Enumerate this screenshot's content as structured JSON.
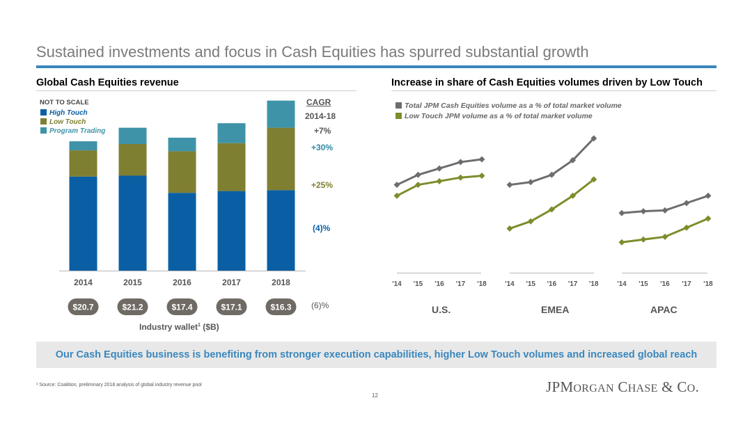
{
  "page": {
    "title": "Sustained investments and focus in Cash Equities has spurred substantial growth",
    "page_number": "12",
    "footnote": "¹ Source: Coalition, preliminary 2018 analysis of global industry revenue pool",
    "banner": "Our Cash Equities business is benefiting from stronger execution capabilities, higher Low Touch volumes and increased global reach",
    "logo": "JPMorgan Chase & Co."
  },
  "left": {
    "heading": "Global Cash Equities revenue",
    "note": "NOT TO SCALE",
    "cagr_heading": "CAGR",
    "cagr_range": "2014-18",
    "wallet_label": "Industry wallet",
    "wallet_sup": "1",
    "wallet_unit": " ($B)"
  },
  "right": {
    "heading": "Increase in share of Cash Equities volumes driven by Low Touch"
  },
  "chart_data": [
    {
      "type": "bar",
      "stacked": true,
      "title": "Global Cash Equities revenue",
      "categories": [
        "2014",
        "2015",
        "2016",
        "2017",
        "2018"
      ],
      "series": [
        {
          "name": "High Touch",
          "color": "#0a5fa4",
          "values": [
            104,
            105,
            86,
            88,
            89
          ],
          "cagr": "(4)%"
        },
        {
          "name": "Low Touch",
          "color": "#7f7f32",
          "values": [
            29,
            35,
            46,
            53,
            69
          ],
          "cagr": "+25%"
        },
        {
          "name": "Program Trading",
          "color": "#3f93a8",
          "values": [
            10,
            18,
            15,
            22,
            30
          ],
          "cagr": "+30%"
        }
      ],
      "total_cagr": "+7%",
      "industry_wallet": [
        "$20.7",
        "$21.2",
        "$17.4",
        "$17.1",
        "$16.3"
      ],
      "industry_wallet_cagr": "(6)%"
    },
    {
      "type": "line",
      "title": "Increase in share of Cash Equities volumes driven by Low Touch",
      "panels": [
        "U.S.",
        "EMEA",
        "APAC"
      ],
      "x": [
        "'14",
        "'15",
        "'16",
        "'17",
        "'18"
      ],
      "series": [
        {
          "name": "Total JPM Cash Equities volume as a % of total market volume",
          "color": "#6d6d6d",
          "panel_values": [
            [
              72,
              83,
              90,
              97,
              100
            ],
            [
              72,
              75,
              83,
              99,
              123
            ],
            [
              41,
              43,
              44,
              52,
              60
            ]
          ]
        },
        {
          "name": "Low Touch JPM volume as a % of total market volume",
          "color": "#7f8c2c",
          "panel_values": [
            [
              60,
              72,
              76,
              80,
              82
            ],
            [
              24,
              32,
              45,
              60,
              78
            ],
            [
              9,
              12,
              15,
              25,
              35
            ]
          ]
        }
      ]
    }
  ]
}
